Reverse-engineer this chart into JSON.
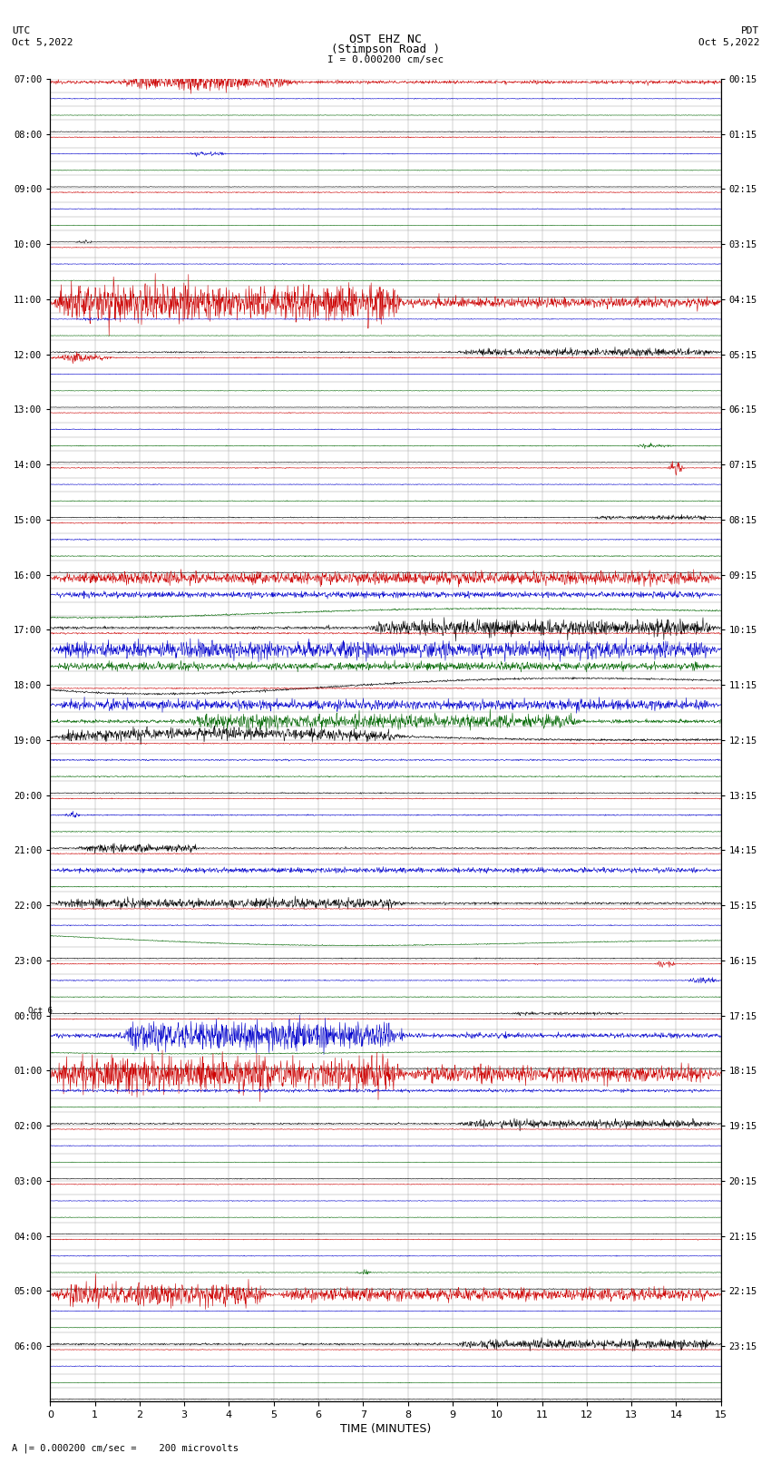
{
  "title_line1": "OST EHZ NC",
  "title_line2": "(Stimpson Road )",
  "scale_label": "I = 0.000200 cm/sec",
  "footer_label": "A |= 0.000200 cm/sec =    200 microvolts",
  "utc_label1": "UTC",
  "utc_label2": "Oct 5,2022",
  "pdt_label1": "PDT",
  "pdt_label2": "Oct 5,2022",
  "xlabel": "TIME (MINUTES)",
  "bg_color": "#ffffff",
  "grid_color": "#999999",
  "trace_colors": [
    "#cc0000",
    "#0000cc",
    "#006600",
    "#000000"
  ],
  "left_times": [
    "07:00",
    "",
    "",
    "",
    "08:00",
    "",
    "",
    "",
    "09:00",
    "",
    "",
    "",
    "10:00",
    "",
    "",
    "",
    "11:00",
    "",
    "",
    "",
    "12:00",
    "",
    "",
    "",
    "13:00",
    "",
    "",
    "",
    "14:00",
    "",
    "",
    "",
    "15:00",
    "",
    "",
    "",
    "16:00",
    "",
    "",
    "",
    "17:00",
    "",
    "",
    "",
    "18:00",
    "",
    "",
    "",
    "19:00",
    "",
    "",
    "",
    "20:00",
    "",
    "",
    "",
    "21:00",
    "",
    "",
    "",
    "22:00",
    "",
    "",
    "",
    "23:00",
    "",
    "",
    "",
    "Oct 6\n00:00",
    "",
    "",
    "",
    "01:00",
    "",
    "",
    "",
    "02:00",
    "",
    "",
    "",
    "03:00",
    "",
    "",
    "",
    "04:00",
    "",
    "",
    "",
    "05:00",
    "",
    "",
    "",
    "06:00",
    "",
    "",
    ""
  ],
  "right_times": [
    "00:15",
    "",
    "",
    "",
    "01:15",
    "",
    "",
    "",
    "02:15",
    "",
    "",
    "",
    "03:15",
    "",
    "",
    "",
    "04:15",
    "",
    "",
    "",
    "05:15",
    "",
    "",
    "",
    "06:15",
    "",
    "",
    "",
    "07:15",
    "",
    "",
    "",
    "08:15",
    "",
    "",
    "",
    "09:15",
    "",
    "",
    "",
    "10:15",
    "",
    "",
    "",
    "11:15",
    "",
    "",
    "",
    "12:15",
    "",
    "",
    "",
    "13:15",
    "",
    "",
    "",
    "14:15",
    "",
    "",
    "",
    "15:15",
    "",
    "",
    "",
    "16:15",
    "",
    "",
    "",
    "17:15",
    "",
    "",
    "",
    "18:15",
    "",
    "",
    "",
    "19:15",
    "",
    "",
    "",
    "20:15",
    "",
    "",
    "",
    "21:15",
    "",
    "",
    "",
    "22:15",
    "",
    "",
    "",
    "23:15",
    "",
    "",
    ""
  ],
  "n_hours": 24,
  "traces_per_hour": 4,
  "n_points": 1800,
  "xmin": 0,
  "xmax": 15,
  "seed": 12345
}
